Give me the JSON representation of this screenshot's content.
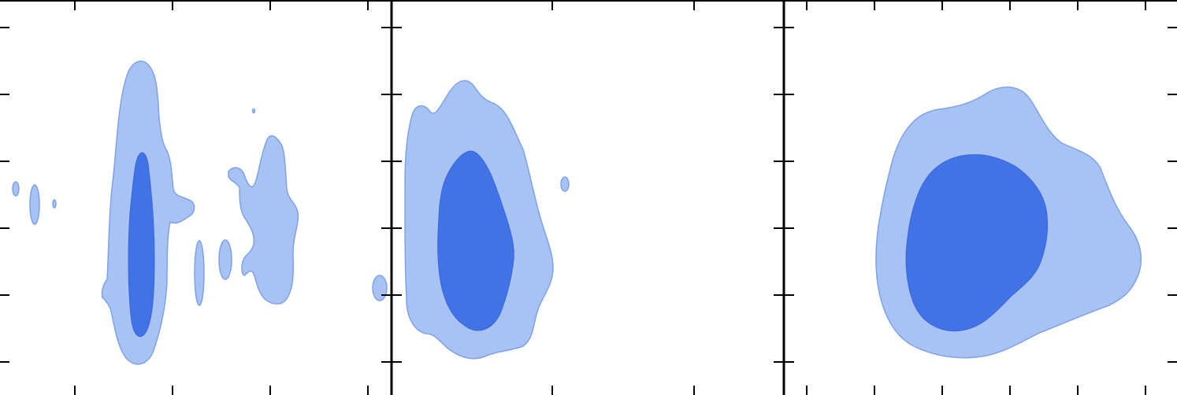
{
  "colors": {
    "outer_fill": "#a8c3f3",
    "outer_stroke": "#7ea2e8",
    "inner_fill": "#4172e6",
    "inner_stroke": "#3a68d8",
    "axis": "#000000"
  },
  "chart_data": [
    {
      "type": "contour",
      "panel": "left",
      "levels": [
        "outer",
        "inner"
      ],
      "tick_labels_shown": false
    },
    {
      "type": "contour",
      "panel": "middle",
      "levels": [
        "outer",
        "inner"
      ],
      "tick_labels_shown": false
    },
    {
      "type": "contour",
      "panel": "right",
      "levels": [
        "outer",
        "inner"
      ],
      "tick_labels_shown": false
    }
  ]
}
